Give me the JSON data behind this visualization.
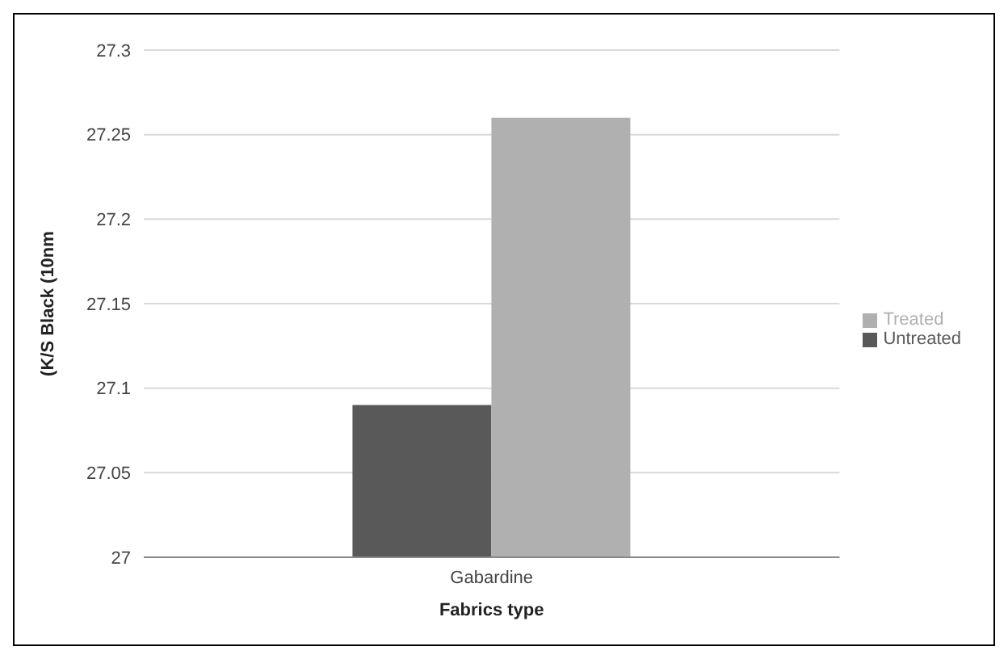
{
  "chart_data": {
    "type": "bar",
    "xlabel": "Fabrics type",
    "ylabel": "(K/S Black (10nm",
    "categories": [
      "Gabardine"
    ],
    "series": [
      {
        "name": "Untreated",
        "color": "#595959",
        "values": [
          27.09
        ]
      },
      {
        "name": "Treated",
        "color": "#b0b0b0",
        "values": [
          27.26
        ]
      }
    ],
    "ylim": [
      27,
      27.3
    ],
    "yticks": [
      27,
      27.05,
      27.1,
      27.15,
      27.2,
      27.25,
      27.3
    ],
    "grid": "y",
    "legend": "right"
  }
}
